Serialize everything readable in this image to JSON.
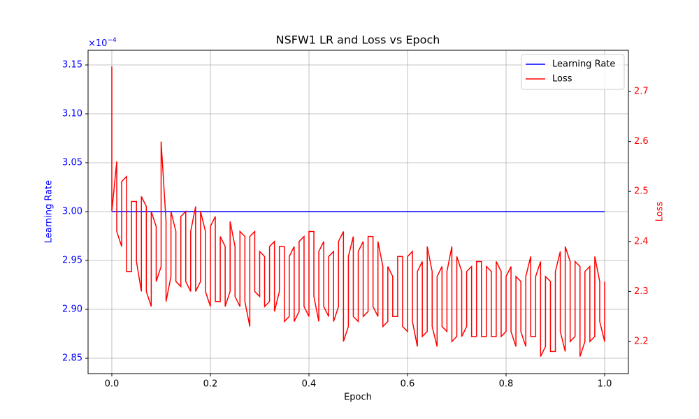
{
  "chart_data": {
    "type": "line",
    "title": "NSFW1 LR and Loss vs Epoch",
    "xlabel": "Epoch",
    "ylabel": "Learning Rate",
    "y2label": "Loss",
    "y_offset_label": {
      "base": "×10",
      "exponent": "−4"
    },
    "xlim": [
      -0.0482,
      1.0482
    ],
    "xticks": [
      {
        "value": 0,
        "label": "0.0"
      },
      {
        "value": 0.2,
        "label": "0.2"
      },
      {
        "value": 0.4,
        "label": "0.4"
      },
      {
        "value": 0.6,
        "label": "0.6"
      },
      {
        "value": 0.8,
        "label": "0.8"
      },
      {
        "value": 1,
        "label": "1.0"
      }
    ],
    "ylim": [
      2.8343,
      3.165
    ],
    "yticks": [
      2.85,
      {
        "value": 2.9,
        "label": "2.90"
      },
      2.95,
      {
        "value": 3.0,
        "label": "3.00"
      },
      3.05,
      {
        "value": 3.1,
        "label": "3.10"
      },
      3.15
    ],
    "y2lim": [
      2.1358,
      2.7824
    ],
    "y2ticks": [
      2.2,
      2.3,
      2.4,
      2.5,
      2.6,
      2.7
    ],
    "grid": true,
    "legend": "upper right",
    "ycolor": "#0000ff",
    "y2color": "#ff0000",
    "series": [
      {
        "name": "Learning Rate",
        "color": "#0000ff",
        "x": [
          0,
          1
        ],
        "values": [
          3.0,
          3.0
        ]
      },
      {
        "name": "Loss",
        "color": "#ff0000",
        "axis": "y2",
        "x": [
          0,
          0,
          0.01,
          0.01,
          0.02,
          0.02,
          0.03,
          0.03,
          0.04,
          0.04,
          0.05,
          0.05,
          0.06,
          0.06,
          0.07,
          0.07,
          0.08,
          0.08,
          0.09,
          0.09,
          0.1,
          0.1,
          0.11,
          0.11,
          0.12,
          0.12,
          0.13,
          0.13,
          0.14,
          0.14,
          0.15,
          0.15,
          0.16,
          0.16,
          0.17,
          0.17,
          0.18,
          0.18,
          0.19,
          0.19,
          0.2,
          0.2,
          0.21,
          0.21,
          0.22,
          0.22,
          0.23,
          0.23,
          0.24,
          0.24,
          0.25,
          0.25,
          0.26,
          0.26,
          0.27,
          0.27,
          0.28,
          0.28,
          0.29,
          0.29,
          0.3,
          0.3,
          0.31,
          0.31,
          0.32,
          0.32,
          0.33,
          0.33,
          0.34,
          0.34,
          0.35,
          0.35,
          0.36,
          0.36,
          0.37,
          0.37,
          0.38,
          0.38,
          0.39,
          0.39,
          0.4,
          0.4,
          0.41,
          0.41,
          0.42,
          0.42,
          0.43,
          0.43,
          0.44,
          0.44,
          0.45,
          0.45,
          0.46,
          0.46,
          0.47,
          0.47,
          0.48,
          0.48,
          0.49,
          0.49,
          0.5,
          0.5,
          0.51,
          0.51,
          0.52,
          0.52,
          0.53,
          0.53,
          0.54,
          0.54,
          0.55,
          0.55,
          0.56,
          0.56,
          0.57,
          0.57,
          0.58,
          0.58,
          0.59,
          0.59,
          0.6,
          0.6,
          0.61,
          0.61,
          0.62,
          0.62,
          0.63,
          0.63,
          0.64,
          0.64,
          0.65,
          0.65,
          0.66,
          0.66,
          0.67,
          0.67,
          0.68,
          0.68,
          0.69,
          0.69,
          0.7,
          0.7,
          0.71,
          0.71,
          0.72,
          0.72,
          0.73,
          0.73,
          0.74,
          0.74,
          0.75,
          0.75,
          0.76,
          0.76,
          0.77,
          0.77,
          0.78,
          0.78,
          0.79,
          0.79,
          0.8,
          0.8,
          0.81,
          0.81,
          0.82,
          0.82,
          0.83,
          0.83,
          0.84,
          0.84,
          0.85,
          0.85,
          0.86,
          0.86,
          0.87,
          0.87,
          0.88,
          0.88,
          0.89,
          0.89,
          0.9,
          0.9,
          0.91,
          0.91,
          0.92,
          0.92,
          0.93,
          0.93,
          0.94,
          0.94,
          0.95,
          0.95,
          0.96,
          0.96,
          0.97,
          0.97,
          0.98,
          0.98,
          0.99,
          0.99,
          1,
          1
        ],
        "values": [
          2.75,
          2.46,
          2.56,
          2.42,
          2.39,
          2.52,
          2.53,
          2.34,
          2.34,
          2.48,
          2.48,
          2.36,
          2.3,
          2.49,
          2.47,
          2.3,
          2.27,
          2.46,
          2.43,
          2.32,
          2.35,
          2.6,
          2.44,
          2.28,
          2.33,
          2.46,
          2.42,
          2.32,
          2.31,
          2.45,
          2.46,
          2.32,
          2.3,
          2.42,
          2.47,
          2.3,
          2.32,
          2.46,
          2.42,
          2.3,
          2.27,
          2.43,
          2.45,
          2.28,
          2.28,
          2.41,
          2.39,
          2.27,
          2.3,
          2.44,
          2.39,
          2.29,
          2.27,
          2.42,
          2.41,
          2.28,
          2.23,
          2.41,
          2.42,
          2.3,
          2.29,
          2.38,
          2.37,
          2.27,
          2.28,
          2.39,
          2.4,
          2.26,
          2.3,
          2.39,
          2.39,
          2.24,
          2.25,
          2.37,
          2.39,
          2.24,
          2.26,
          2.4,
          2.41,
          2.27,
          2.25,
          2.42,
          2.42,
          2.29,
          2.24,
          2.38,
          2.4,
          2.27,
          2.25,
          2.37,
          2.38,
          2.24,
          2.27,
          2.4,
          2.42,
          2.2,
          2.23,
          2.37,
          2.41,
          2.25,
          2.24,
          2.38,
          2.4,
          2.25,
          2.26,
          2.41,
          2.41,
          2.27,
          2.25,
          2.4,
          2.35,
          2.23,
          2.24,
          2.35,
          2.33,
          2.25,
          2.25,
          2.37,
          2.37,
          2.23,
          2.22,
          2.37,
          2.38,
          2.24,
          2.19,
          2.34,
          2.36,
          2.21,
          2.22,
          2.39,
          2.34,
          2.23,
          2.19,
          2.33,
          2.35,
          2.23,
          2.22,
          2.34,
          2.39,
          2.2,
          2.21,
          2.37,
          2.34,
          2.21,
          2.23,
          2.34,
          2.35,
          2.21,
          2.21,
          2.36,
          2.36,
          2.21,
          2.21,
          2.35,
          2.34,
          2.21,
          2.21,
          2.36,
          2.34,
          2.21,
          2.22,
          2.33,
          2.35,
          2.22,
          2.19,
          2.33,
          2.32,
          2.22,
          2.19,
          2.33,
          2.37,
          2.21,
          2.21,
          2.33,
          2.36,
          2.17,
          2.19,
          2.33,
          2.32,
          2.18,
          2.18,
          2.34,
          2.38,
          2.22,
          2.18,
          2.39,
          2.36,
          2.2,
          2.21,
          2.36,
          2.35,
          2.17,
          2.2,
          2.34,
          2.35,
          2.2,
          2.21,
          2.37,
          2.32,
          2.24,
          2.2,
          2.32
        ]
      }
    ]
  }
}
